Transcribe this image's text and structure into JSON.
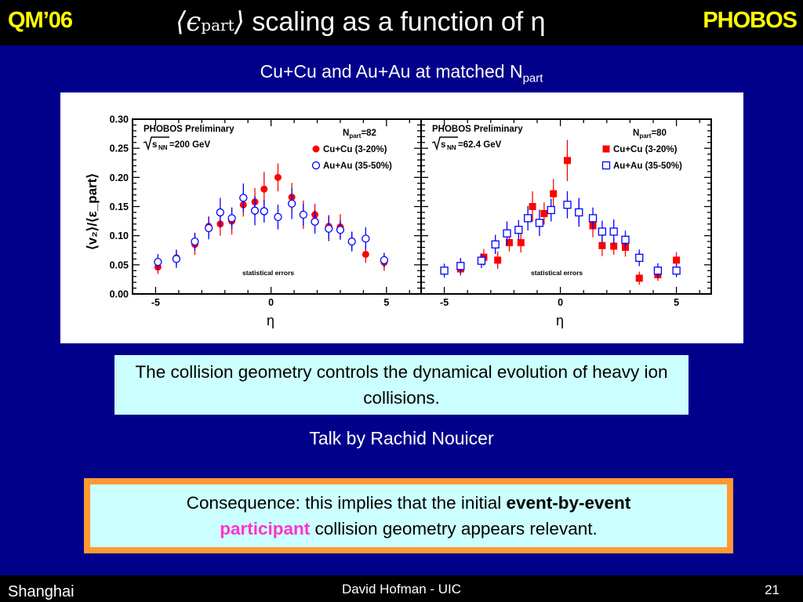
{
  "header": {
    "conference": "QM’06",
    "collaboration": "PHOBOS",
    "title_symbol": "⟨ϵ",
    "title_sub": "part",
    "title_close": "⟩",
    "title_text": "scaling as a function of η"
  },
  "subtitle": {
    "main": "Cu+Cu and Au+Au at matched N",
    "sub": "part"
  },
  "chart_data": [
    {
      "type": "scatter",
      "panel": "left",
      "preliminary": "PHOBOS Preliminary",
      "energy_label": "=200 GeV",
      "energy_root": "s",
      "energy_root_sub": "NN",
      "npart_label": "N",
      "npart_sub": "part",
      "npart_value": "=82",
      "footnote": "statistical errors",
      "xlabel": "η",
      "ylabel": "⟨v₂⟩/⟨ε_part⟩",
      "xlim": [
        -6,
        6.5
      ],
      "ylim": [
        0,
        0.3
      ],
      "x_ticks": [
        "-5",
        "0",
        "5"
      ],
      "y_ticks": [
        "0.00",
        "0.05",
        "0.10",
        "0.15",
        "0.20",
        "0.25",
        "0.30"
      ],
      "series": [
        {
          "name": "Cu+Cu (3-20%)",
          "marker": "filled-circle",
          "color": "#ff0000",
          "x": [
            -4.9,
            -4.1,
            -3.3,
            -2.7,
            -2.2,
            -1.7,
            -1.2,
            -0.7,
            -0.3,
            0.3,
            0.9,
            1.4,
            1.9,
            2.5,
            3.0,
            3.5,
            4.1,
            4.9
          ],
          "y": [
            0.046,
            0.062,
            0.085,
            0.116,
            0.12,
            0.125,
            0.153,
            0.158,
            0.18,
            0.2,
            0.166,
            0.136,
            0.136,
            0.116,
            0.115,
            0.091,
            0.068,
            0.054
          ]
        },
        {
          "name": "Au+Au (35-50%)",
          "marker": "open-circle",
          "color": "#0000ff",
          "x": [
            -4.9,
            -4.1,
            -3.3,
            -2.7,
            -2.2,
            -1.7,
            -1.2,
            -0.7,
            -0.3,
            0.3,
            0.9,
            1.4,
            1.9,
            2.5,
            3.0,
            3.5,
            4.1,
            4.9
          ],
          "y": [
            0.055,
            0.06,
            0.09,
            0.113,
            0.14,
            0.13,
            0.165,
            0.143,
            0.142,
            0.132,
            0.155,
            0.136,
            0.124,
            0.112,
            0.11,
            0.09,
            0.095,
            0.058
          ]
        }
      ]
    },
    {
      "type": "scatter",
      "panel": "right",
      "preliminary": "PHOBOS Preliminary",
      "energy_label": "=62.4 GeV",
      "energy_root": "s",
      "energy_root_sub": "NN",
      "npart_label": "N",
      "npart_sub": "part",
      "npart_value": "=80",
      "footnote": "statistical errors",
      "xlabel": "η",
      "xlim": [
        -6,
        6.5
      ],
      "ylim": [
        0,
        0.3
      ],
      "x_ticks": [
        "-5",
        "0",
        "5"
      ],
      "series": [
        {
          "name": "Cu+Cu (3-20%)",
          "marker": "filled-square",
          "color": "#ff0000",
          "x": [
            -4.3,
            -3.3,
            -2.7,
            -2.2,
            -1.7,
            -1.2,
            -0.7,
            -0.3,
            0.3,
            0.8,
            1.4,
            1.8,
            2.3,
            2.8,
            3.4,
            4.2,
            5.0
          ],
          "y": [
            0.043,
            0.063,
            0.058,
            0.088,
            0.088,
            0.15,
            0.138,
            0.172,
            0.229,
            0.14,
            0.117,
            0.083,
            0.082,
            0.08,
            0.027,
            0.033,
            0.058
          ]
        },
        {
          "name": "Au+Au (35-50%)",
          "marker": "open-square",
          "color": "#0000ff",
          "x": [
            -5.0,
            -4.3,
            -3.4,
            -2.8,
            -2.3,
            -1.8,
            -1.4,
            -0.9,
            -0.4,
            0.3,
            0.8,
            1.4,
            1.8,
            2.3,
            2.8,
            3.4,
            4.2,
            5.0
          ],
          "y": [
            0.04,
            0.048,
            0.057,
            0.085,
            0.104,
            0.11,
            0.13,
            0.122,
            0.144,
            0.153,
            0.14,
            0.13,
            0.107,
            0.107,
            0.093,
            0.062,
            0.04,
            0.04
          ]
        }
      ]
    }
  ],
  "statement": "The collision geometry controls the dynamical evolution of heavy ion collisions.",
  "talk": "Talk by Rachid Nouicer",
  "consequence": {
    "part1": "Consequence: this implies that the initial ",
    "bold": "event-by-event",
    "pink": "participant",
    "part2": " collision geometry appears relevant."
  },
  "footer": {
    "place": "Shanghai",
    "author": "David Hofman - UIC",
    "page": "21"
  }
}
